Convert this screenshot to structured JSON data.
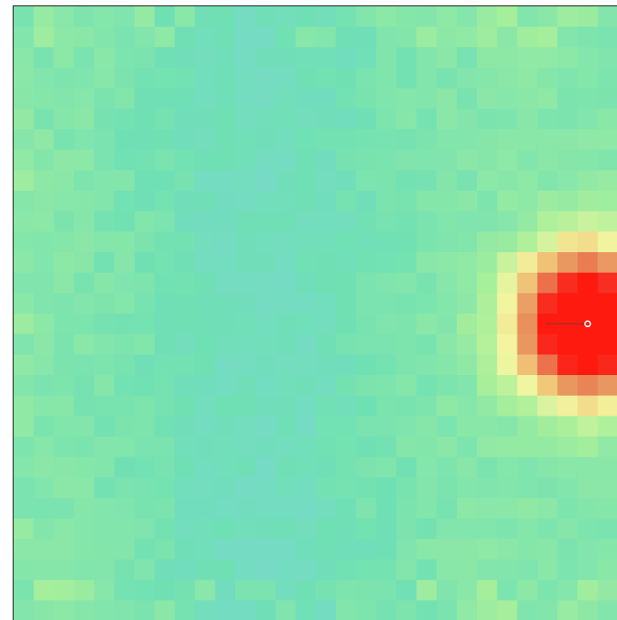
{
  "chart_data": {
    "type": "heatmap",
    "title": "",
    "xlabel": "",
    "ylabel": "",
    "grid_columns": 30,
    "grid_rows": 30,
    "value_range": [
      0,
      1
    ],
    "background_level": 0.3,
    "colormap": [
      "#7fa8e6",
      "#7fd3d9",
      "#6fe0b4",
      "#a8ef9a",
      "#f2f5a0",
      "#f0c87a",
      "#e8905c",
      "#f04030",
      "#ff1a10"
    ],
    "hotspot": {
      "column": 28.5,
      "row": 15.5,
      "peak": 1.0,
      "spread": 2.4
    },
    "low_band": {
      "column": 12.5,
      "depth": 0.08,
      "spread": 4.5
    },
    "marker": {
      "column": 28.5,
      "row": 15.5,
      "color": "#ffffff"
    },
    "marker_line": {
      "from_column": 26.4,
      "to_column": 28.5,
      "row": 15.5,
      "color": "#c0281c"
    }
  }
}
